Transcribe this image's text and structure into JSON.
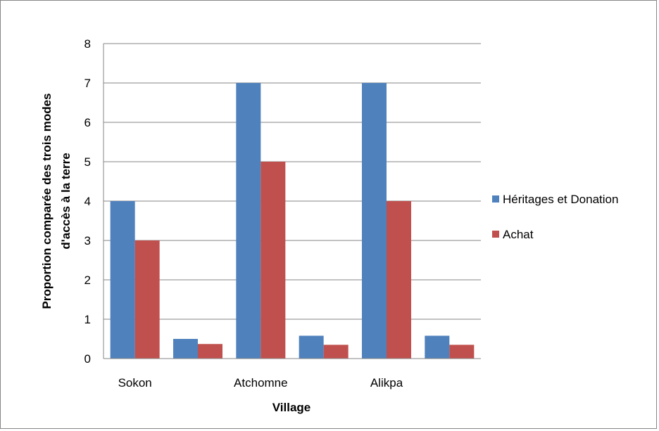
{
  "chart_data": {
    "type": "bar",
    "categories": [
      "Sokon",
      "",
      "Atchomne",
      "",
      "Alikpa",
      ""
    ],
    "series": [
      {
        "name": "Héritages et Donation",
        "values": [
          4,
          0.5,
          7,
          0.58,
          7,
          0.58
        ],
        "color": "#4F81BD"
      },
      {
        "name": "Achat",
        "values": [
          3,
          0.37,
          5,
          0.35,
          4,
          0.35
        ],
        "color": "#C0504D"
      }
    ],
    "xlabel": "Village",
    "ylabel_lines": [
      "Proportion  comparée des trois  modes",
      "d'accès à la terre"
    ],
    "ylim": [
      0,
      8
    ],
    "yticks": [
      "0",
      "1",
      "2",
      "3",
      "4",
      "5",
      "6",
      "7",
      "8"
    ],
    "grid": true,
    "legend_position": "right"
  }
}
